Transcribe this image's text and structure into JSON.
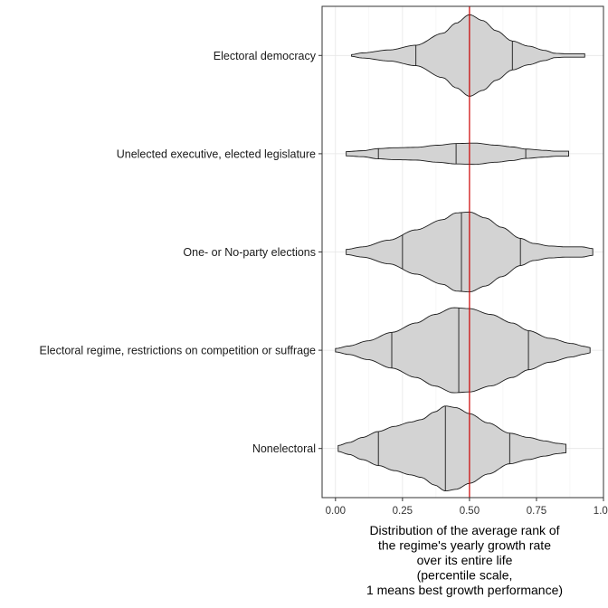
{
  "chart_data": {
    "type": "violin",
    "title": "",
    "xlabel_lines": [
      "Distribution of the average rank of",
      "the regime's yearly growth rate",
      "over its entire life",
      "(percentile scale,",
      "1 means best growth performance)"
    ],
    "ylabel": "",
    "xlim": [
      -0.05,
      1.0
    ],
    "x_ticks": [
      0.0,
      0.25,
      0.5,
      0.75,
      1.0
    ],
    "x_tick_labels": [
      "0.00",
      "0.25",
      "0.50",
      "0.75",
      "1.00"
    ],
    "reference_line": {
      "x": 0.5,
      "color": "#cc0000"
    },
    "grid": true,
    "fill_color": "#d3d3d3",
    "categories": [
      "Electoral democracy",
      "Unelected executive, elected legislature",
      "One- or No-party elections",
      "Electoral regime, restrictions on competition or suffrage",
      "Nonelectoral"
    ],
    "violins": [
      {
        "category": "Electoral democracy",
        "min": 0.06,
        "max": 0.93,
        "quantiles": [
          0.3,
          0.5,
          0.66
        ],
        "density": [
          [
            0.06,
            0.02
          ],
          [
            0.1,
            0.06
          ],
          [
            0.2,
            0.13
          ],
          [
            0.3,
            0.24
          ],
          [
            0.4,
            0.52
          ],
          [
            0.45,
            0.76
          ],
          [
            0.5,
            0.96
          ],
          [
            0.55,
            0.82
          ],
          [
            0.6,
            0.58
          ],
          [
            0.66,
            0.34
          ],
          [
            0.72,
            0.22
          ],
          [
            0.78,
            0.12
          ],
          [
            0.82,
            0.05
          ],
          [
            0.86,
            0.04
          ],
          [
            0.93,
            0.04
          ]
        ]
      },
      {
        "category": "Unelected executive, elected legislature",
        "min": 0.04,
        "max": 0.87,
        "quantiles": [
          0.16,
          0.45,
          0.71
        ],
        "density": [
          [
            0.04,
            0.05
          ],
          [
            0.1,
            0.07
          ],
          [
            0.16,
            0.12
          ],
          [
            0.22,
            0.14
          ],
          [
            0.3,
            0.15
          ],
          [
            0.38,
            0.2
          ],
          [
            0.45,
            0.24
          ],
          [
            0.52,
            0.25
          ],
          [
            0.6,
            0.2
          ],
          [
            0.66,
            0.16
          ],
          [
            0.71,
            0.11
          ],
          [
            0.78,
            0.08
          ],
          [
            0.82,
            0.06
          ],
          [
            0.87,
            0.06
          ]
        ]
      },
      {
        "category": "One- or No-party elections",
        "min": 0.04,
        "max": 0.96,
        "quantiles": [
          0.25,
          0.47,
          0.69
        ],
        "density": [
          [
            0.04,
            0.06
          ],
          [
            0.1,
            0.12
          ],
          [
            0.2,
            0.28
          ],
          [
            0.3,
            0.52
          ],
          [
            0.4,
            0.76
          ],
          [
            0.45,
            0.92
          ],
          [
            0.5,
            0.94
          ],
          [
            0.56,
            0.8
          ],
          [
            0.62,
            0.58
          ],
          [
            0.69,
            0.32
          ],
          [
            0.74,
            0.2
          ],
          [
            0.8,
            0.14
          ],
          [
            0.86,
            0.12
          ],
          [
            0.92,
            0.12
          ],
          [
            0.96,
            0.08
          ]
        ]
      },
      {
        "category": "Electoral regime, restrictions on competition or suffrage",
        "min": 0.0,
        "max": 0.95,
        "quantiles": [
          0.21,
          0.46,
          0.72
        ],
        "density": [
          [
            0.0,
            0.04
          ],
          [
            0.05,
            0.1
          ],
          [
            0.12,
            0.22
          ],
          [
            0.21,
            0.42
          ],
          [
            0.3,
            0.64
          ],
          [
            0.37,
            0.84
          ],
          [
            0.44,
            1.0
          ],
          [
            0.5,
            0.98
          ],
          [
            0.58,
            0.84
          ],
          [
            0.66,
            0.64
          ],
          [
            0.72,
            0.46
          ],
          [
            0.8,
            0.28
          ],
          [
            0.88,
            0.16
          ],
          [
            0.93,
            0.09
          ],
          [
            0.95,
            0.06
          ]
        ]
      },
      {
        "category": "Nonelectoral",
        "min": 0.01,
        "max": 0.86,
        "quantiles": [
          0.16,
          0.41,
          0.65
        ],
        "density": [
          [
            0.01,
            0.07
          ],
          [
            0.05,
            0.14
          ],
          [
            0.1,
            0.26
          ],
          [
            0.16,
            0.4
          ],
          [
            0.22,
            0.52
          ],
          [
            0.28,
            0.62
          ],
          [
            0.32,
            0.68
          ],
          [
            0.37,
            0.86
          ],
          [
            0.41,
            1.0
          ],
          [
            0.45,
            0.96
          ],
          [
            0.5,
            0.82
          ],
          [
            0.57,
            0.6
          ],
          [
            0.65,
            0.36
          ],
          [
            0.72,
            0.26
          ],
          [
            0.78,
            0.18
          ],
          [
            0.83,
            0.12
          ],
          [
            0.86,
            0.1
          ]
        ]
      }
    ]
  }
}
